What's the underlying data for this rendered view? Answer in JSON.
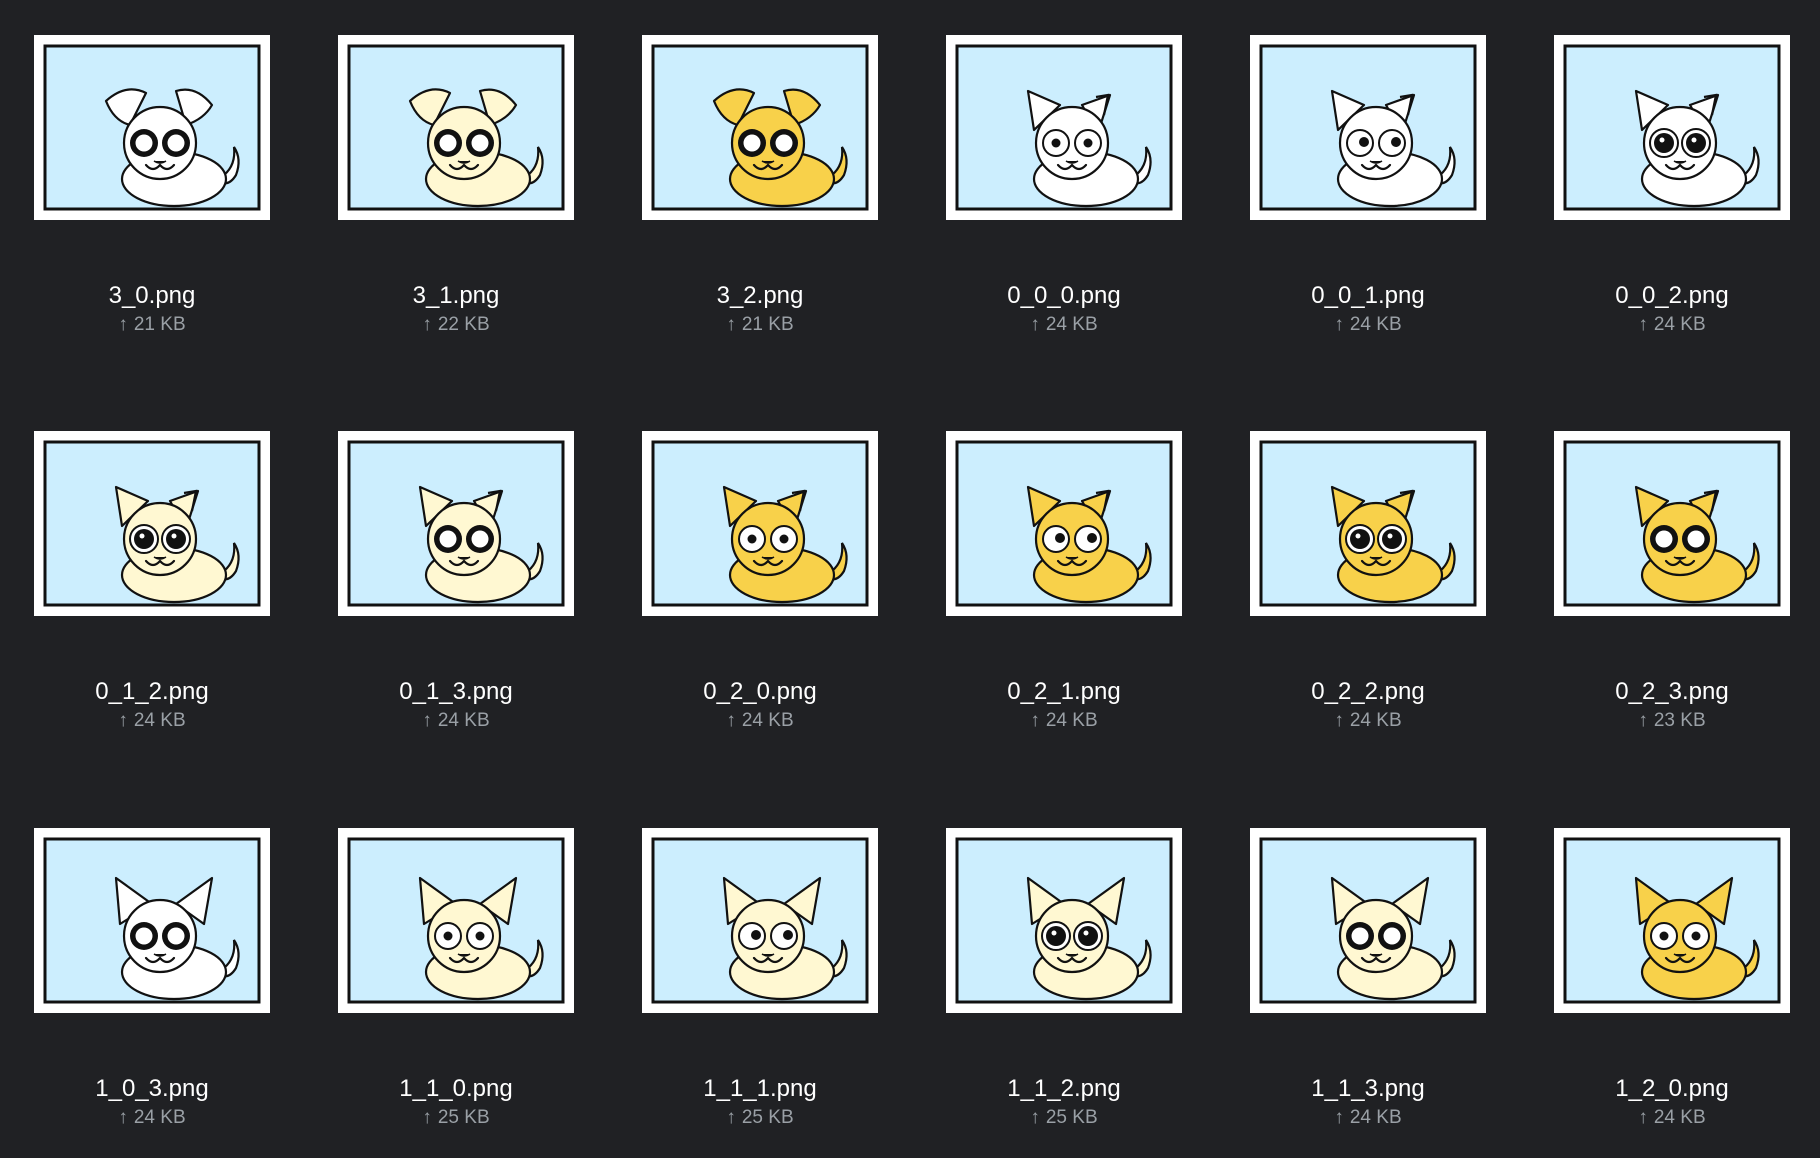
{
  "colors": {
    "background": "#202124",
    "thumb_border": "#ffffff",
    "scene_sky": "#cceefe",
    "fur_white": "#ffffff",
    "fur_cream": "#fff8d2",
    "fur_yellow": "#f8d14a"
  },
  "upload_icon": "↑",
  "files": [
    {
      "name": "3_0.png",
      "size": "21 KB",
      "ears": "floppy",
      "fur": "white",
      "eyes": "ring"
    },
    {
      "name": "3_1.png",
      "size": "22 KB",
      "ears": "floppy",
      "fur": "cream",
      "eyes": "ring"
    },
    {
      "name": "3_2.png",
      "size": "21 KB",
      "ears": "floppy",
      "fur": "yellow",
      "eyes": "ring"
    },
    {
      "name": "0_0_0.png",
      "size": "24 KB",
      "ears": "folded",
      "fur": "white",
      "eyes": "small"
    },
    {
      "name": "0_0_1.png",
      "size": "24 KB",
      "ears": "folded",
      "fur": "white",
      "eyes": "side"
    },
    {
      "name": "0_0_2.png",
      "size": "24 KB",
      "ears": "folded",
      "fur": "white",
      "eyes": "big"
    },
    {
      "name": "0_1_2.png",
      "size": "24 KB",
      "ears": "folded",
      "fur": "cream",
      "eyes": "big"
    },
    {
      "name": "0_1_3.png",
      "size": "24 KB",
      "ears": "folded",
      "fur": "cream",
      "eyes": "ring"
    },
    {
      "name": "0_2_0.png",
      "size": "24 KB",
      "ears": "folded",
      "fur": "yellow",
      "eyes": "small"
    },
    {
      "name": "0_2_1.png",
      "size": "24 KB",
      "ears": "folded",
      "fur": "yellow",
      "eyes": "side"
    },
    {
      "name": "0_2_2.png",
      "size": "24 KB",
      "ears": "folded",
      "fur": "yellow",
      "eyes": "big"
    },
    {
      "name": "0_2_3.png",
      "size": "23 KB",
      "ears": "folded",
      "fur": "yellow",
      "eyes": "ring"
    },
    {
      "name": "1_0_3.png",
      "size": "24 KB",
      "ears": "pointy",
      "fur": "white",
      "eyes": "ring"
    },
    {
      "name": "1_1_0.png",
      "size": "25 KB",
      "ears": "pointy",
      "fur": "cream",
      "eyes": "small"
    },
    {
      "name": "1_1_1.png",
      "size": "25 KB",
      "ears": "pointy",
      "fur": "cream",
      "eyes": "side"
    },
    {
      "name": "1_1_2.png",
      "size": "25 KB",
      "ears": "pointy",
      "fur": "cream",
      "eyes": "big"
    },
    {
      "name": "1_1_3.png",
      "size": "24 KB",
      "ears": "pointy",
      "fur": "cream",
      "eyes": "ring"
    },
    {
      "name": "1_2_0.png",
      "size": "24 KB",
      "ears": "pointy",
      "fur": "yellow",
      "eyes": "small"
    }
  ]
}
